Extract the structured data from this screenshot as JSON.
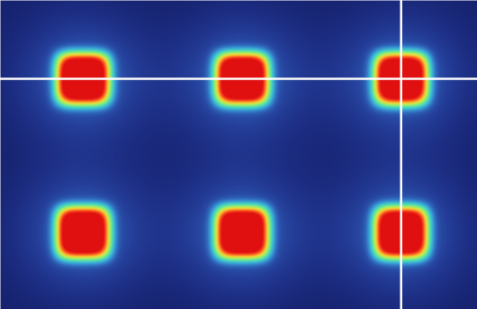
{
  "chart_data": {
    "type": "heatmap",
    "tick_labels": false,
    "xlim": [
      0.48,
      3.48
    ],
    "ylim": [
      0.49,
      2.5
    ],
    "zlim": [
      0,
      1
    ],
    "spots": {
      "x": [
        1,
        2,
        3,
        1,
        2,
        3
      ],
      "y": [
        1,
        1,
        1,
        2,
        2,
        2
      ],
      "peak": [
        1,
        1,
        1,
        1,
        1,
        1
      ]
    },
    "spot_width": 0.17,
    "halo_width": 0.4,
    "halo_peak": 0.25,
    "background": 0.05,
    "lines": {
      "x": [
        3
      ],
      "y": [
        1
      ]
    }
  }
}
